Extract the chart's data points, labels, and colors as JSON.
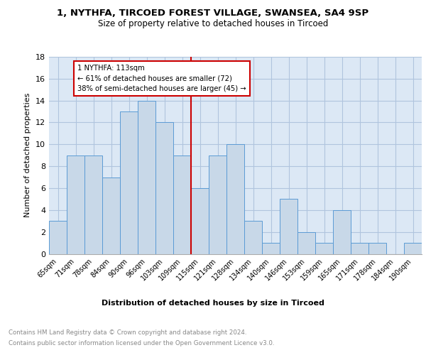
{
  "title1": "1, NYTHFA, TIRCOED FOREST VILLAGE, SWANSEA, SA4 9SP",
  "title2": "Size of property relative to detached houses in Tircoed",
  "xlabel": "Distribution of detached houses by size in Tircoed",
  "ylabel": "Number of detached properties",
  "categories": [
    "65sqm",
    "71sqm",
    "78sqm",
    "84sqm",
    "90sqm",
    "96sqm",
    "103sqm",
    "109sqm",
    "115sqm",
    "121sqm",
    "128sqm",
    "134sqm",
    "140sqm",
    "146sqm",
    "153sqm",
    "159sqm",
    "165sqm",
    "171sqm",
    "178sqm",
    "184sqm",
    "190sqm"
  ],
  "values": [
    3,
    9,
    9,
    7,
    13,
    14,
    12,
    9,
    6,
    9,
    10,
    3,
    1,
    5,
    2,
    1,
    4,
    1,
    1,
    0,
    1
  ],
  "bar_color": "#c8d8e8",
  "bar_edge_color": "#5b9bd5",
  "marker_category_index": 8,
  "marker_line_color": "#cc0000",
  "annotation_text": "1 NYTHFA: 113sqm\n← 61% of detached houses are smaller (72)\n38% of semi-detached houses are larger (45) →",
  "annotation_box_color": "#ffffff",
  "annotation_box_edge_color": "#cc0000",
  "footer_line1": "Contains HM Land Registry data © Crown copyright and database right 2024.",
  "footer_line2": "Contains public sector information licensed under the Open Government Licence v3.0.",
  "ylim": [
    0,
    18
  ],
  "yticks": [
    0,
    2,
    4,
    6,
    8,
    10,
    12,
    14,
    16,
    18
  ],
  "grid_color": "#b0c4de",
  "bg_color": "#dce8f5"
}
